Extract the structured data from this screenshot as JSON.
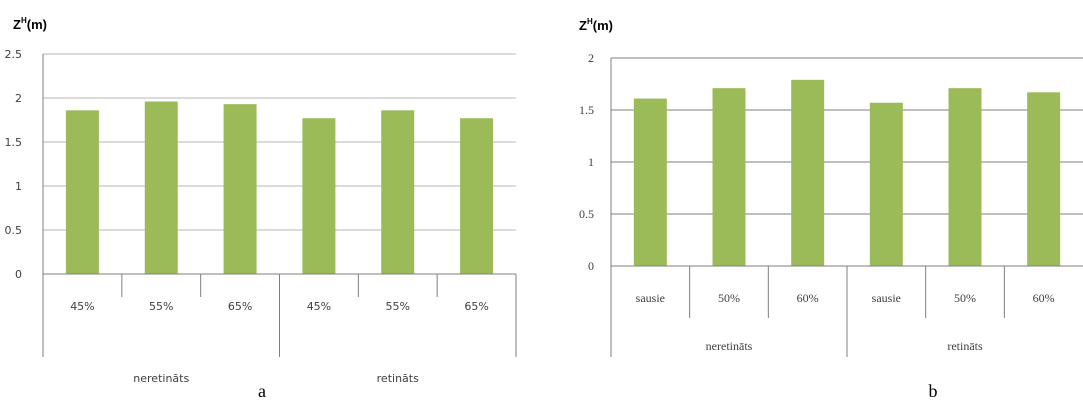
{
  "chart_data": [
    {
      "type": "bar",
      "ylabel": {
        "base": "Z",
        "sup": "H",
        "unit": "(m)"
      },
      "ylim": [
        0,
        2.5
      ],
      "yticks": [
        "0",
        "0.5",
        "1",
        "1.5",
        "2",
        "2.5"
      ],
      "grid": true,
      "bar_color": "#9bbb59",
      "categories": [
        "45%",
        "55%",
        "65%",
        "45%",
        "55%",
        "65%"
      ],
      "groups": [
        {
          "label": "neretināts",
          "count": 3
        },
        {
          "label": "retināts",
          "count": 3
        }
      ],
      "values": [
        1.86,
        1.96,
        1.93,
        1.77,
        1.86,
        1.77
      ],
      "panel_label": "a"
    },
    {
      "type": "bar",
      "ylabel": {
        "base": "Z",
        "sup": "H",
        "unit": "(m)"
      },
      "ylim": [
        0,
        2
      ],
      "yticks": [
        "0",
        "0.5",
        "1",
        "1.5",
        "2"
      ],
      "grid": true,
      "bar_color": "#9bbb59",
      "categories": [
        "sausie",
        "50%",
        "60%",
        "sausie",
        "50%",
        "60%"
      ],
      "groups": [
        {
          "label": "neretināts",
          "count": 3
        },
        {
          "label": "retināts",
          "count": 3
        }
      ],
      "values": [
        1.61,
        1.71,
        1.79,
        1.57,
        1.71,
        1.67
      ],
      "panel_label": "b"
    }
  ]
}
